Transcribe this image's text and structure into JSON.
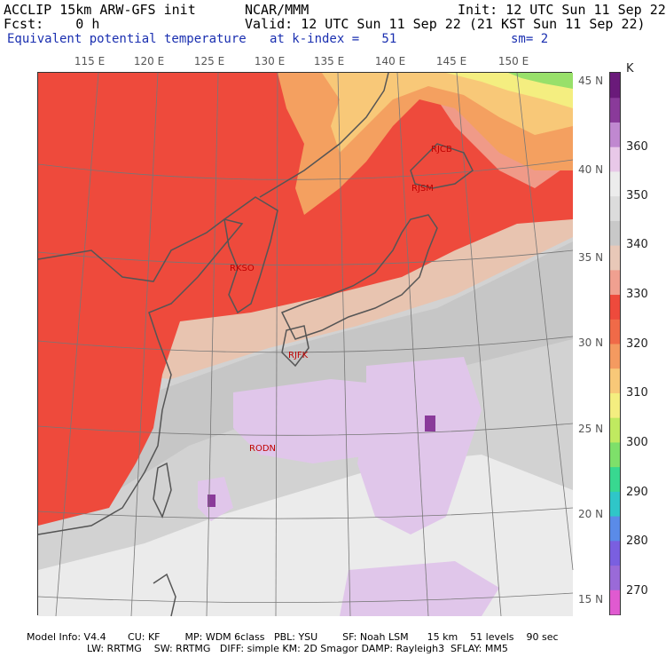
{
  "header": {
    "model": "ACCLIP 15km ARW-GFS init",
    "org": "NCAR/MMM",
    "init": "Init: 12 UTC Sun 11 Sep 22",
    "fcst": "Fcst:    0 h",
    "valid": "Valid: 12 UTC Sun 11 Sep 22 (21 KST Sun 11 Sep 22)",
    "field": "Equivalent potential temperature",
    "level": "at k-index =   51",
    "smooth": "sm= 2"
  },
  "map": {
    "longitude_labels": [
      "115 E",
      "120 E",
      "125 E",
      "130 E",
      "135 E",
      "140 E",
      "145 E",
      "150 E"
    ],
    "latitude_labels": [
      "45 N",
      "40 N",
      "35 N",
      "30 N",
      "25 N",
      "20 N",
      "15 N"
    ],
    "stations": [
      {
        "id": "RJCB"
      },
      {
        "id": "RJSM"
      },
      {
        "id": "RKSO"
      },
      {
        "id": "RJFK"
      },
      {
        "id": "RODN"
      }
    ]
  },
  "colorbar": {
    "unit": "K",
    "levels": [
      "360",
      "350",
      "340",
      "330",
      "320",
      "310",
      "300",
      "290",
      "280",
      "270"
    ],
    "colors": [
      "#e05ad0",
      "#9a6ad8",
      "#7a5fe0",
      "#5a8be8",
      "#2fc6c8",
      "#38d890",
      "#7ee06a",
      "#c0ea60",
      "#f4ee80",
      "#f8c878",
      "#f49a60",
      "#f06a48",
      "#ee4a3c",
      "#f0a090",
      "#e8c8b8",
      "#c8c8c8",
      "#dcdcdc",
      "#ececec",
      "#e8c8e8",
      "#c088d0",
      "#8a3a9a",
      "#6a1a7a"
    ]
  },
  "footer": {
    "line1": "Model Info: V4.4       CU: KF        MP: WDM 6class   PBL: YSU        SF: Noah LSM      15 km    51 levels    90 sec",
    "line2": "LW: RRTMG    SW: RRTMG   DIFF: simple KM: 2D Smagor DAMP: Rayleigh3  SFLAY: MM5"
  }
}
